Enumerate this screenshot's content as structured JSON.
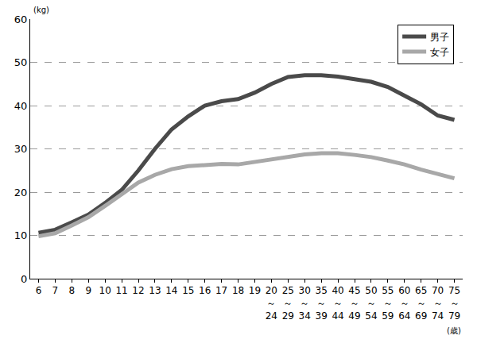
{
  "chart_data": {
    "type": "line",
    "ylabel": "(kg)",
    "xlabel": "(歳)",
    "categories": [
      "6",
      "7",
      "8",
      "9",
      "10",
      "11",
      "12",
      "13",
      "14",
      "15",
      "16",
      "17",
      "18",
      "19",
      "20～24",
      "25～29",
      "30～34",
      "35～39",
      "40～44",
      "45～49",
      "50～54",
      "55～59",
      "60～64",
      "65～69",
      "70～74",
      "75～79"
    ],
    "series": [
      {
        "name": "男子",
        "color": "#4a4a4a",
        "values": [
          10.6,
          11.3,
          13.0,
          14.8,
          17.5,
          20.5,
          25.0,
          30.0,
          34.5,
          37.5,
          40.0,
          41.0,
          41.5,
          43.0,
          45.0,
          46.6,
          47.0,
          47.0,
          46.7,
          46.2,
          45.5,
          44.3,
          42.3,
          40.3,
          37.7,
          36.7
        ]
      },
      {
        "name": "女子",
        "color": "#a8a8a8",
        "values": [
          9.8,
          10.5,
          12.3,
          14.2,
          16.8,
          19.5,
          22.2,
          24.0,
          25.3,
          26.0,
          26.3,
          26.5,
          26.4,
          27.0,
          27.4,
          28.2,
          28.7,
          29.0,
          29.0,
          28.6,
          28.1,
          27.3,
          26.4,
          25.2,
          24.1,
          23.2
        ]
      }
    ],
    "ylim": [
      0,
      60
    ],
    "yticks": [
      0,
      10,
      20,
      30,
      40,
      50,
      60
    ],
    "grid": true,
    "legend": "top right"
  }
}
